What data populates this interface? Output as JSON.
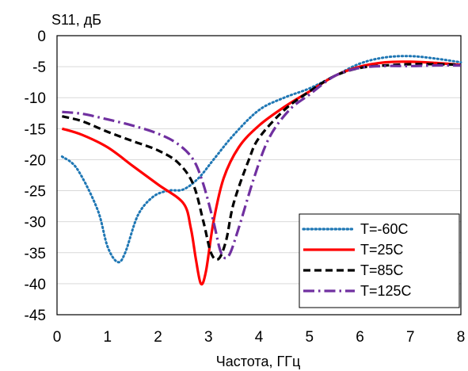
{
  "chart_data": {
    "type": "line",
    "ylabel": "S11, дБ",
    "xlabel": "Частота, ГГц",
    "xlim": [
      0,
      8
    ],
    "ylim": [
      -45,
      0
    ],
    "xticks": [
      "0",
      "1",
      "2",
      "3",
      "4",
      "5",
      "6",
      "7",
      "8"
    ],
    "yticks": [
      "0",
      "-5",
      "-10",
      "-15",
      "-20",
      "-25",
      "-30",
      "-35",
      "-40",
      "-45"
    ],
    "grid": "horizontal",
    "legend_position": "bottom-right",
    "series": [
      {
        "name": "T=-60C",
        "color": "#1f77b4",
        "style": "dotted",
        "x": [
          0.1,
          0.4,
          0.8,
          1.0,
          1.2,
          1.35,
          1.6,
          1.9,
          2.2,
          2.5,
          2.8,
          3.1,
          3.5,
          4.0,
          4.5,
          5.0,
          5.5,
          6.0,
          6.5,
          7.0,
          7.5,
          8.0
        ],
        "y": [
          -19.5,
          -21.5,
          -28,
          -34,
          -36.5,
          -35,
          -29,
          -26,
          -25,
          -24.8,
          -23,
          -20,
          -16,
          -12,
          -10,
          -8.5,
          -6.5,
          -4.5,
          -3.5,
          -3.3,
          -3.7,
          -4.3
        ]
      },
      {
        "name": "T=25C",
        "color": "#ff0000",
        "style": "solid",
        "x": [
          0.1,
          0.5,
          1.0,
          1.5,
          2.0,
          2.5,
          2.65,
          2.75,
          2.85,
          2.95,
          3.1,
          3.3,
          3.6,
          4.0,
          4.5,
          5.0,
          5.5,
          6.0,
          6.5,
          7.0,
          7.5,
          8.0
        ],
        "y": [
          -15,
          -16,
          -18,
          -21,
          -24,
          -27,
          -31,
          -36,
          -40,
          -38,
          -30,
          -23,
          -18,
          -14.5,
          -11.5,
          -9,
          -6.5,
          -5,
          -4.3,
          -4.2,
          -4.4,
          -4.7
        ]
      },
      {
        "name": "T=85C",
        "color": "#000000",
        "style": "dashed",
        "x": [
          0.1,
          0.5,
          1.0,
          1.5,
          2.0,
          2.4,
          2.7,
          2.9,
          3.05,
          3.2,
          3.35,
          3.5,
          3.8,
          4.0,
          4.5,
          5.0,
          5.5,
          6.0,
          6.5,
          7.0,
          7.5,
          8.0
        ],
        "y": [
          -13,
          -13.8,
          -15.5,
          -17,
          -18.5,
          -20.5,
          -24,
          -30,
          -35,
          -36,
          -33,
          -27,
          -20,
          -16.5,
          -12,
          -9,
          -6.5,
          -5.2,
          -4.8,
          -4.6,
          -4.6,
          -4.7
        ]
      },
      {
        "name": "T=125C",
        "color": "#7030a0",
        "style": "dashdot",
        "x": [
          0.1,
          0.5,
          1.0,
          1.5,
          2.0,
          2.4,
          2.7,
          2.9,
          3.1,
          3.25,
          3.4,
          3.6,
          3.9,
          4.2,
          4.6,
          5.0,
          5.5,
          6.0,
          6.5,
          7.0,
          7.5,
          8.0
        ],
        "y": [
          -12.3,
          -12.6,
          -13.5,
          -14.5,
          -15.8,
          -17.5,
          -20,
          -24,
          -30,
          -35,
          -35.5,
          -31,
          -23,
          -16.5,
          -12,
          -9.5,
          -6.5,
          -5.2,
          -4.9,
          -4.9,
          -4.8,
          -4.8
        ]
      }
    ]
  }
}
